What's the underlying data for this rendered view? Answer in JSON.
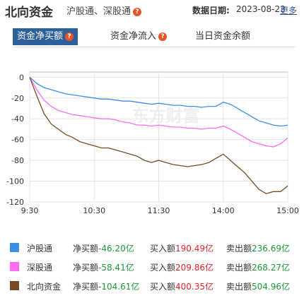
{
  "header": {
    "title": "北向资金",
    "subtitle": "沪股通、深股通",
    "help_icon": "?",
    "date_label": "数据日期:",
    "date_value": "2023-08-23",
    "more_label": "更多"
  },
  "tabs": [
    {
      "label": "资金净买额",
      "active": true
    },
    {
      "label": "资金净流入",
      "active": false
    },
    {
      "label": "当日资金余额",
      "active": false
    }
  ],
  "watermark": "东方财富",
  "colors": {
    "hgt": "#3a8ee6",
    "sgt": "#ff6cf0",
    "north": "#7a4a22",
    "accent": "#2d5f9a"
  },
  "chart_data": {
    "type": "line",
    "x_ticks": [
      "9:30",
      "10:30",
      "11:30",
      "14:00",
      "15:00"
    ],
    "y_ticks": [
      0,
      -20,
      -40,
      -60,
      -80,
      -100,
      -120
    ],
    "ylim": [
      -120,
      5
    ],
    "grid": true,
    "series": [
      {
        "name": "沪股通",
        "color": "#3a8ee6",
        "values": [
          0,
          -6,
          -10,
          -12,
          -14,
          -16,
          -17,
          -18,
          -19,
          -20,
          -21,
          -21,
          -22,
          -23,
          -23,
          -24,
          -25,
          -26,
          -25,
          -26,
          -27,
          -27,
          -28,
          -28,
          -29,
          -28,
          -28,
          -24,
          -26,
          -30,
          -34,
          -38,
          -42,
          -44,
          -46,
          -47,
          -46.2
        ]
      },
      {
        "name": "深股通",
        "color": "#ff6cf0",
        "values": [
          0,
          -12,
          -22,
          -28,
          -32,
          -34,
          -36,
          -37,
          -38,
          -39,
          -40,
          -40,
          -41,
          -43,
          -44,
          -46,
          -46,
          -47,
          -46,
          -47,
          -48,
          -48,
          -49,
          -49,
          -50,
          -49,
          -49,
          -47,
          -50,
          -54,
          -58,
          -62,
          -64,
          -66,
          -67,
          -64,
          -58.41
        ]
      },
      {
        "name": "北向资金",
        "color": "#7a4a22",
        "values": [
          0,
          -18,
          -35,
          -45,
          -50,
          -55,
          -58,
          -62,
          -64,
          -66,
          -68,
          -68,
          -70,
          -72,
          -74,
          -76,
          -80,
          -82,
          -80,
          -82,
          -84,
          -85,
          -86,
          -85,
          -84,
          -82,
          -78,
          -74,
          -80,
          -86,
          -92,
          -100,
          -108,
          -112,
          -110,
          -110,
          -104.61
        ]
      }
    ]
  },
  "legend": [
    {
      "name": "沪股通",
      "color": "#3a8ee6",
      "net_label": "净买额",
      "net_value": "-46.20亿",
      "buy_label": "买入额",
      "buy_value": "190.49亿",
      "sell_label": "卖出额",
      "sell_value": "236.69亿"
    },
    {
      "name": "深股通",
      "color": "#ff6cf0",
      "net_label": "净买额",
      "net_value": "-58.41亿",
      "buy_label": "买入额",
      "buy_value": "209.86亿",
      "sell_label": "卖出额",
      "sell_value": "268.27亿"
    },
    {
      "name": "北向资金",
      "color": "#7a4a22",
      "net_label": "净买额",
      "net_value": "-104.61亿",
      "buy_label": "买入额",
      "buy_value": "400.35亿",
      "sell_label": "卖出额",
      "sell_value": "504.96亿"
    }
  ]
}
